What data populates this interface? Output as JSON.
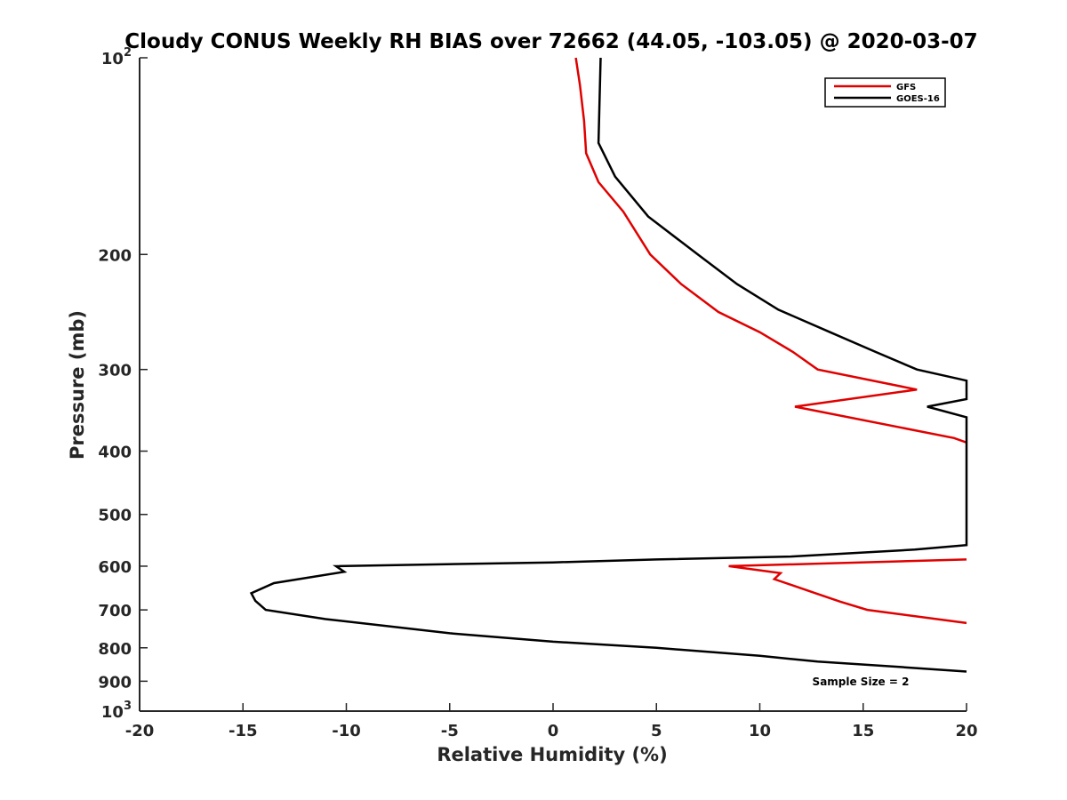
{
  "chart_data": {
    "type": "line",
    "title": "Cloudy CONUS Weekly RH BIAS over 72662 (44.05, -103.05) @ 2020-03-07",
    "xlabel": "Relative Humidity (%)",
    "ylabel": "Pressure (mb)",
    "xlim": [
      -20,
      20
    ],
    "ylim": [
      100,
      1000
    ],
    "yscale": "log",
    "y_reversed": true,
    "x_ticks": [
      "-20",
      "-15",
      "-10",
      "-5",
      "0",
      "5",
      "10",
      "15",
      "20"
    ],
    "y_ticks": [
      {
        "value": 100,
        "base": "10",
        "exp": "2"
      },
      {
        "value": 200,
        "label": "200"
      },
      {
        "value": 300,
        "label": "300"
      },
      {
        "value": 400,
        "label": "400"
      },
      {
        "value": 500,
        "label": "500"
      },
      {
        "value": 600,
        "label": "600"
      },
      {
        "value": 700,
        "label": "700"
      },
      {
        "value": 800,
        "label": "800"
      },
      {
        "value": 900,
        "label": "900"
      },
      {
        "value": 1000,
        "base": "10",
        "exp": "3"
      }
    ],
    "grid": false,
    "legend_position": "top-right",
    "annotation": "Sample Size = 2",
    "series": [
      {
        "name": "GFS",
        "color": "#e00000",
        "points": [
          [
            1.1,
            100
          ],
          [
            1.3,
            110
          ],
          [
            1.5,
            125
          ],
          [
            1.6,
            140
          ],
          [
            2.2,
            155
          ],
          [
            3.4,
            172
          ],
          [
            4.7,
            200
          ],
          [
            6.2,
            222
          ],
          [
            8.0,
            245
          ],
          [
            10.0,
            263
          ],
          [
            11.6,
            282
          ],
          [
            12.8,
            300
          ],
          [
            17.6,
            322
          ],
          [
            11.7,
            342
          ],
          [
            19.4,
            382
          ],
          [
            20,
            388
          ]
        ]
      },
      {
        "name": "GOES-16",
        "color": "#000000",
        "points": [
          [
            2.3,
            100
          ],
          [
            2.2,
            135
          ],
          [
            3.0,
            152
          ],
          [
            4.6,
            175
          ],
          [
            7.0,
            200
          ],
          [
            8.9,
            222
          ],
          [
            10.9,
            243
          ],
          [
            13.4,
            263
          ],
          [
            15.6,
            282
          ],
          [
            17.6,
            300
          ],
          [
            20,
            312
          ],
          [
            20,
            333
          ],
          [
            18.1,
            342
          ],
          [
            20,
            355
          ],
          [
            20,
            557
          ],
          [
            17.5,
            566
          ],
          [
            11.5,
            580
          ],
          [
            5.0,
            586
          ],
          [
            0,
            592
          ],
          [
            -10.5,
            600
          ],
          [
            -10.1,
            612
          ],
          [
            -13.5,
            637
          ],
          [
            -14.6,
            660
          ],
          [
            -14.4,
            678
          ],
          [
            -13.9,
            700
          ],
          [
            -11.0,
            723
          ],
          [
            -5.0,
            760
          ],
          [
            0,
            783
          ],
          [
            5.0,
            800
          ],
          [
            10.0,
            823
          ],
          [
            12.8,
            840
          ],
          [
            17.0,
            857
          ],
          [
            20,
            870
          ]
        ]
      },
      {
        "name": "GFS",
        "color": "#e00000",
        "points": [
          [
            20,
            586
          ],
          [
            8.5,
            600
          ],
          [
            11.0,
            615
          ],
          [
            10.7,
            628
          ],
          [
            12.7,
            660
          ],
          [
            13.9,
            680
          ],
          [
            15.2,
            700
          ],
          [
            20,
            733
          ]
        ]
      }
    ]
  }
}
